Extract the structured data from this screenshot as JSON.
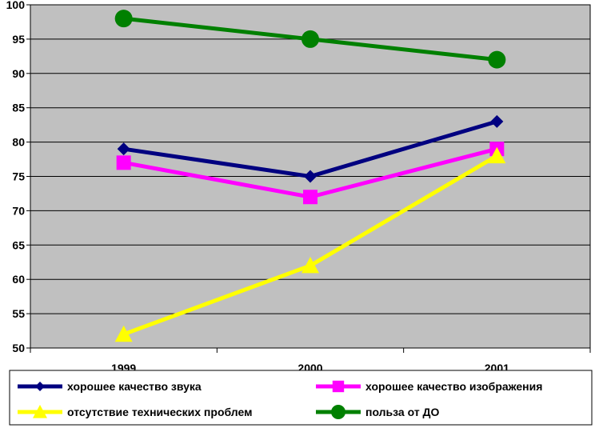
{
  "chart_data": {
    "type": "line",
    "title": "",
    "xlabel": "",
    "ylabel": "",
    "categories": [
      "1999",
      "2000",
      "2001"
    ],
    "ylim": [
      50,
      100
    ],
    "yticks": [
      50,
      55,
      60,
      65,
      70,
      75,
      80,
      85,
      90,
      95,
      100
    ],
    "grid": true,
    "plot_background": "#c0c0c0",
    "legend_position": "bottom",
    "series": [
      {
        "name": "хорошее качество звука",
        "values": [
          79,
          75,
          83
        ],
        "color": "#000080",
        "marker": "diamond"
      },
      {
        "name": "хорошее качество изображения",
        "values": [
          77,
          72,
          79
        ],
        "color": "#ff00ff",
        "marker": "square"
      },
      {
        "name": "отсутствие технических проблем",
        "values": [
          52,
          62,
          78
        ],
        "color": "#ffff00",
        "marker": "triangle"
      },
      {
        "name": "польза от ДО",
        "values": [
          98,
          95,
          92
        ],
        "color": "#008000",
        "marker": "circle"
      }
    ]
  }
}
